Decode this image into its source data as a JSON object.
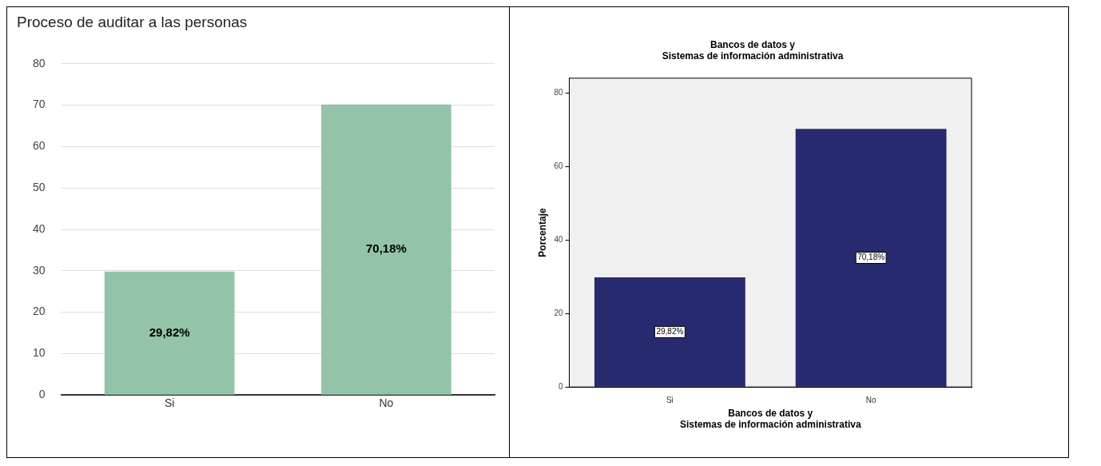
{
  "chart_data": [
    {
      "type": "bar",
      "title": "Proceso de auditar a las personas",
      "categories": [
        "Si",
        "No"
      ],
      "values": [
        29.82,
        70.18
      ],
      "color": "#93c4a8",
      "ylim": [
        0,
        80
      ],
      "yticks": [
        0,
        10,
        20,
        30,
        40,
        50,
        60,
        70,
        80
      ],
      "grid": "y",
      "value_labels": [
        "29,82%",
        "70,18%"
      ]
    },
    {
      "type": "bar",
      "title": "Bancos de datos y\nSistemas de información administrativa",
      "xlabel": "Bancos de datos y\nSistemas de información administrativa",
      "ylabel": "Porcentaje",
      "categories": [
        "Si",
        "No"
      ],
      "values": [
        29.82,
        70.18
      ],
      "color": "#282a70",
      "ylim": [
        0,
        84
      ],
      "yticks": [
        0,
        20,
        40,
        60,
        80
      ],
      "grid": false,
      "value_labels": [
        "29,82%",
        "70,18%"
      ]
    }
  ]
}
